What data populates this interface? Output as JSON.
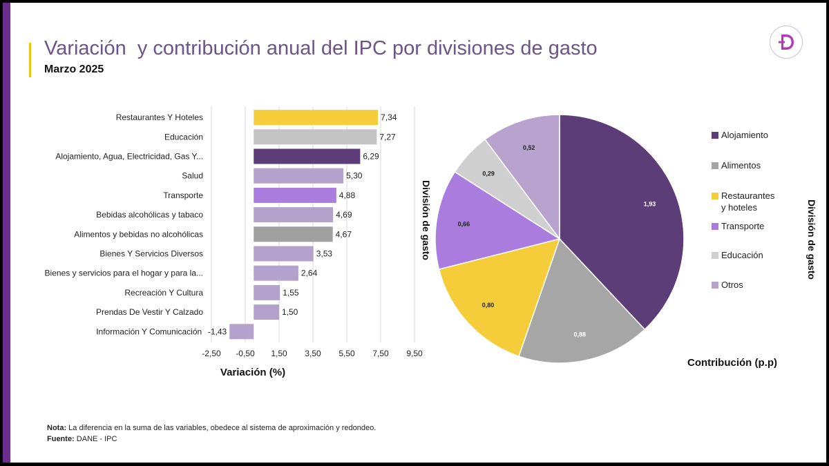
{
  "header": {
    "title": "Variación  y contribución anual del IPC por divisiones de gasto",
    "subtitle": "Marzo 2025"
  },
  "logo": {
    "icon": "d-logo-icon",
    "color": "#b03ab8"
  },
  "footer": {
    "note_label": "Nota:",
    "note_text": " La diferencia en la suma de las variables, obedece al sistema de aproximación y redondeo.",
    "source_label": "Fuente:",
    "source_text": " DANE - IPC"
  },
  "chart_data": [
    {
      "type": "bar",
      "orientation": "horizontal",
      "categories": [
        "Restaurantes Y Hoteles",
        "Educación",
        "Alojamiento, Agua, Electricidad, Gas Y...",
        "Salud",
        "Transporte",
        "Bebidas alcohólicas y tabaco",
        "Alimentos y bebidas no alcohólicas",
        "Bienes Y Servicios Diversos",
        "Bienes y servicios para el hogar y para la...",
        "Recreación Y Cultura",
        "Prendas De Vestir Y Calzado",
        "Información Y Comunicación"
      ],
      "values": [
        7.34,
        7.27,
        6.29,
        5.3,
        4.88,
        4.69,
        4.67,
        3.53,
        2.64,
        1.55,
        1.5,
        -1.43
      ],
      "value_labels": [
        "7,34",
        "7,27",
        "6,29",
        "5,30",
        "4,88",
        "4,69",
        "4,67",
        "3,53",
        "2,64",
        "1,55",
        "1,50",
        "-1,43"
      ],
      "colors": [
        "#f5cd3a",
        "#c4c4c4",
        "#5c3d78",
        "#b3a2cb",
        "#a97cde",
        "#b3a2cb",
        "#a0a0a0",
        "#b3a2cb",
        "#b3a2cb",
        "#b3a2cb",
        "#b3a2cb",
        "#b3a2cb"
      ],
      "xlabel": "Variación (%)",
      "xlim": [
        -2.5,
        9.5
      ],
      "ticks": [
        -2.5,
        -0.5,
        1.5,
        3.5,
        5.5,
        7.5,
        9.5
      ],
      "tick_labels": [
        "-2,50",
        "-0,50",
        "1,50",
        "3,50",
        "5,50",
        "7,50",
        "9,50"
      ],
      "grid": true
    },
    {
      "type": "pie",
      "categories": [
        "Alojamiento",
        "Alimentos",
        "Restaurantes y hoteles",
        "Transporte",
        "Educación",
        "Otros"
      ],
      "values": [
        1.93,
        0.88,
        0.8,
        0.66,
        0.29,
        0.52
      ],
      "value_labels": [
        "1,93",
        "0,88",
        "0,80",
        "0,66",
        "0,29",
        "0,52"
      ],
      "colors": [
        "#5c3d78",
        "#a6a6a6",
        "#f5cd3a",
        "#a97cde",
        "#cfcfcf",
        "#b8a3ce"
      ],
      "legend_labels": [
        [
          "Alojamiento"
        ],
        [
          "Alimentos"
        ],
        [
          "Restaurantes",
          "y hoteles"
        ],
        [
          "Transporte"
        ],
        [
          "Educación"
        ],
        [
          "Otros"
        ]
      ],
      "legend_position": "right",
      "xlabel": "Contribución (p.p)",
      "side_label": "División de gasto",
      "legend_title": "División de gasto"
    }
  ]
}
